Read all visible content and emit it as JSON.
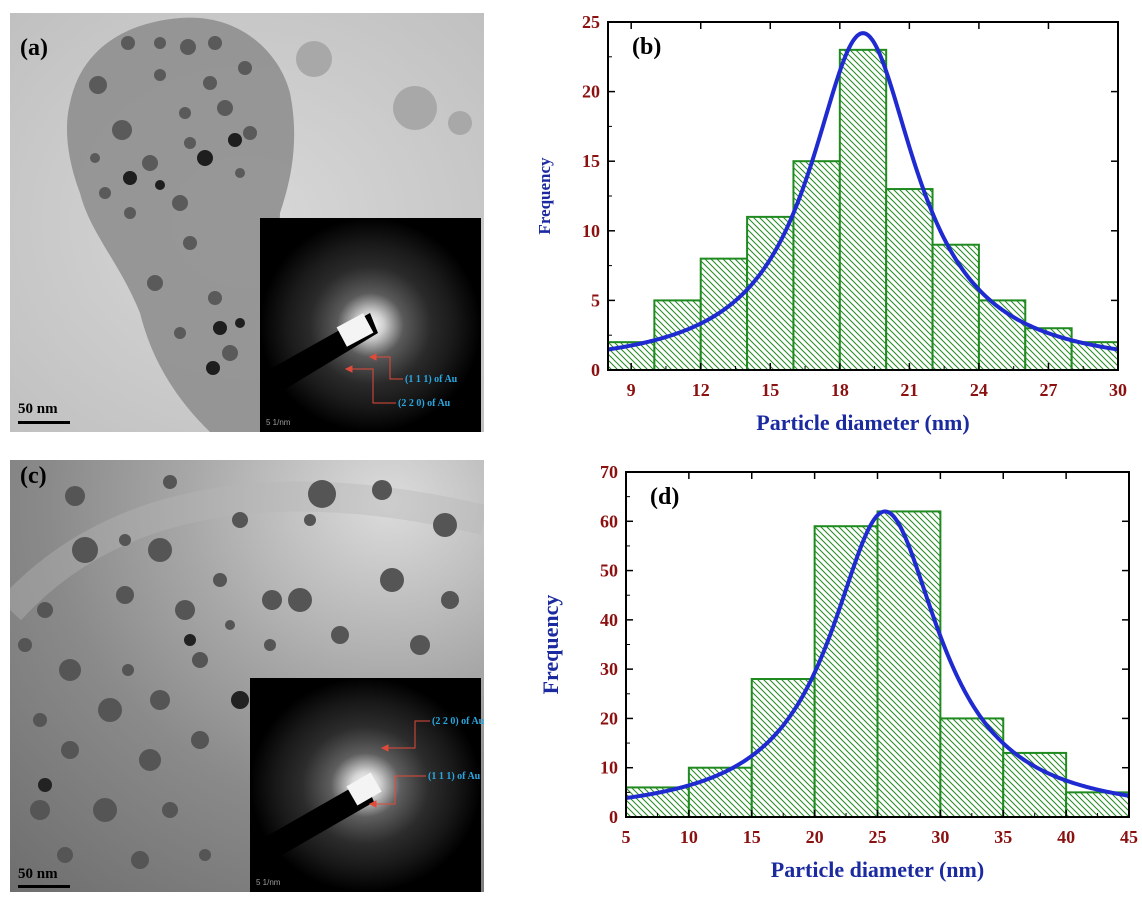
{
  "colors": {
    "bar_stroke": "#1f8a1f",
    "hatch": "#1f8a1f",
    "fit_line": "#1f2ad0",
    "tick_label": "#8b1010",
    "axis_title": "#1c2aa0",
    "inset_label": "#2aa6e0",
    "inset_arrow": "#e04a3a"
  },
  "panels": {
    "a": {
      "letter": "(a)",
      "scale_bar": "50 nm",
      "inset_scale": "5 1/nm",
      "inset_labels": [
        "(1 1 1)  of Au",
        "(2 2 0)  of Au"
      ]
    },
    "c": {
      "letter": "(c)",
      "scale_bar": "50 nm",
      "inset_scale": "5 1/nm",
      "inset_labels": [
        "(2 2 0)  of Au",
        "(1 1 1)  of Au"
      ]
    }
  },
  "chart_data": [
    {
      "panel_letter": "(b)",
      "type": "bar",
      "xlabel": "Particle diameter (nm)",
      "ylabel": "Frequency",
      "xlim": [
        8,
        30
      ],
      "ylim": [
        0,
        25
      ],
      "xticks": [
        9,
        12,
        15,
        18,
        21,
        24,
        27,
        30
      ],
      "yticks": [
        0,
        5,
        10,
        15,
        20,
        25
      ],
      "bin_edges": [
        8,
        10,
        12,
        14,
        16,
        18,
        20,
        22,
        24,
        26,
        28,
        30
      ],
      "values": [
        2,
        5,
        8,
        11,
        15,
        23,
        13,
        9,
        5,
        3,
        2
      ],
      "fit": {
        "type": "lorentzian",
        "center": 19.0,
        "peak": 24.2,
        "hwhm": 2.8
      },
      "grid": false
    },
    {
      "panel_letter": "(d)",
      "type": "bar",
      "xlabel": "Particle diameter (nm)",
      "ylabel": "Frequency",
      "xlim": [
        5,
        45
      ],
      "ylim": [
        0,
        70
      ],
      "xticks": [
        5,
        10,
        15,
        20,
        25,
        30,
        35,
        40,
        45
      ],
      "yticks": [
        0,
        10,
        20,
        30,
        40,
        50,
        60,
        70
      ],
      "bin_edges": [
        5,
        10,
        15,
        20,
        25,
        30,
        35,
        40,
        45
      ],
      "values": [
        6,
        10,
        28,
        59,
        62,
        20,
        13,
        5
      ],
      "fit": {
        "type": "lorentzian",
        "center": 25.6,
        "peak": 62,
        "hwhm": 5.3
      },
      "grid": false
    }
  ]
}
